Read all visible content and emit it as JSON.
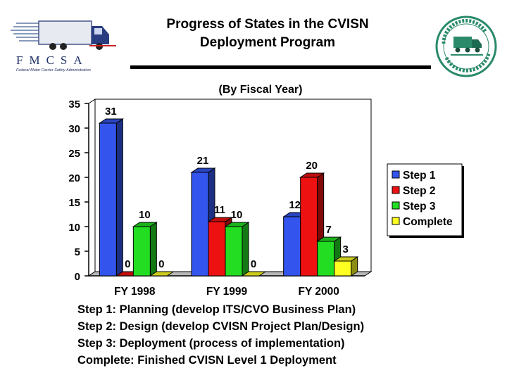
{
  "header": {
    "title_line1": "Progress of States in the CVISN",
    "title_line2": "Deployment Program",
    "subtitle": "(By Fiscal Year)"
  },
  "logos": {
    "left_letters": [
      "F",
      "M",
      "C",
      "S",
      "A"
    ],
    "left_tagline": "Federal Motor Carrier Safety Administration",
    "right_name": "CVISN"
  },
  "chart_data": {
    "type": "bar",
    "title": "Progress of States in the CVISN Deployment Program",
    "subtitle": "(By Fiscal Year)",
    "categories": [
      "FY 1998",
      "FY 1999",
      "FY 2000"
    ],
    "series": [
      {
        "name": "Step 1",
        "color": "#3355ee",
        "values": [
          31,
          21,
          12
        ]
      },
      {
        "name": "Step 2",
        "color": "#ee1111",
        "values": [
          0,
          11,
          20
        ]
      },
      {
        "name": "Step 3",
        "color": "#22dd22",
        "values": [
          10,
          10,
          7
        ]
      },
      {
        "name": "Complete",
        "color": "#ffff22",
        "values": [
          0,
          0,
          3
        ]
      }
    ],
    "ylim": [
      0,
      35
    ],
    "yticks": [
      0,
      5,
      10,
      15,
      20,
      25,
      30,
      35
    ],
    "legend_position": "right",
    "grid": false
  },
  "notes": [
    "Step 1: Planning (develop ITS/CVO Business Plan)",
    "Step 2: Design (develop CVISN Project Plan/Design)",
    "Step 3: Deployment (process of implementation)",
    "Complete: Finished CVISN Level 1 Deployment"
  ]
}
